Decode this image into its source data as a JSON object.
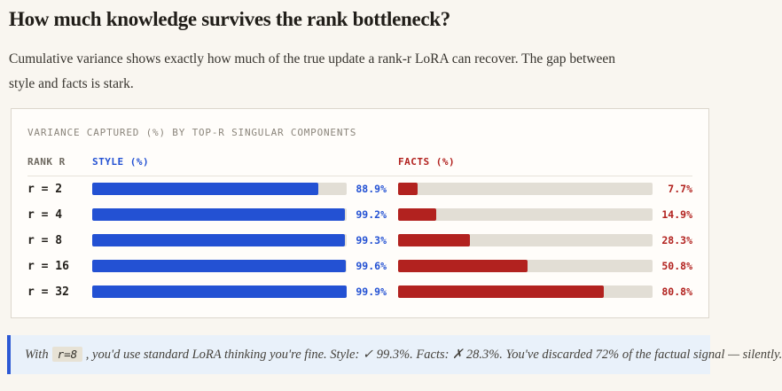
{
  "page": {
    "heading": "How much knowledge survives the rank bottleneck?",
    "intro_line1": "Cumulative variance shows exactly how much of the true update a rank-r LoRA can recover. The gap between",
    "intro_line2": "style and facts is stark."
  },
  "panel": {
    "title": "VARIANCE CAPTURED (%) BY TOP-R SINGULAR COMPONENTS",
    "columns": {
      "rank": "RANK R",
      "style": "STYLE (%)",
      "facts": "FACTS (%)"
    }
  },
  "chart_data": {
    "type": "bar",
    "orientation": "horizontal",
    "title": "VARIANCE CAPTURED (%) BY TOP-R SINGULAR COMPONENTS",
    "categories": [
      "r = 2",
      "r = 4",
      "r = 8",
      "r = 16",
      "r = 32"
    ],
    "series": [
      {
        "name": "STYLE (%)",
        "color": "#2351d3",
        "values": [
          88.9,
          99.2,
          99.3,
          99.6,
          99.9
        ],
        "labels": [
          "88.9%",
          "99.2%",
          "99.3%",
          "99.6%",
          "99.9%"
        ]
      },
      {
        "name": "FACTS (%)",
        "color": "#b2221f",
        "values": [
          7.7,
          14.9,
          28.3,
          50.8,
          80.8
        ],
        "labels": [
          "7.7%",
          "14.9%",
          "28.3%",
          "50.8%",
          "80.8%"
        ]
      }
    ],
    "xlim": [
      0,
      100
    ],
    "track_color": "#e2ded5",
    "legend_position": "column-headers",
    "grid": false
  },
  "callout": {
    "prefix": "With",
    "code": "r=8",
    "body": " , you'd use standard LoRA thinking you're fine. Style: ✓ 99.3%. Facts: ✗ 28.3%. You've discarded 72% of the factual signal — silently."
  },
  "colors": {
    "page_bg": "#f9f6f0",
    "panel_bg": "#fffdfa",
    "panel_border": "#dcd7cd",
    "style_accent": "#2351d3",
    "facts_accent": "#b2221f",
    "bar_track": "#e2ded5",
    "callout_bg": "#e9f1fa",
    "callout_border": "#2d59d4"
  }
}
